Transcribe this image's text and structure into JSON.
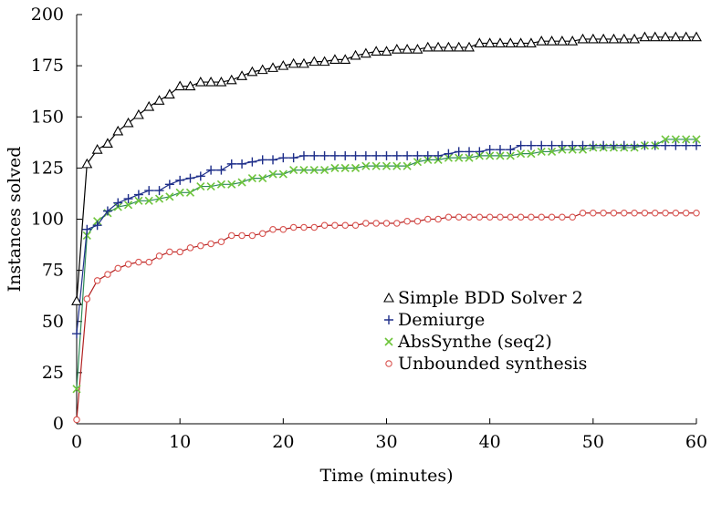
{
  "chart_data": {
    "type": "line",
    "title": "",
    "xlabel": "Time (minutes)",
    "ylabel": "Instances solved",
    "xlim": [
      0,
      60
    ],
    "ylim": [
      0,
      200
    ],
    "x_ticks": [
      0,
      10,
      20,
      30,
      40,
      50,
      60
    ],
    "y_ticks": [
      0,
      25,
      50,
      75,
      100,
      125,
      150,
      175,
      200
    ],
    "grid": false,
    "legend_position": "center-right",
    "series": [
      {
        "name": "Simple BDD Solver 2",
        "color": "#000000",
        "marker": "triangle",
        "x": [
          0,
          1,
          2,
          3,
          4,
          5,
          6,
          7,
          8,
          9,
          10,
          11,
          12,
          13,
          14,
          15,
          16,
          17,
          18,
          19,
          20,
          21,
          22,
          23,
          24,
          25,
          26,
          27,
          28,
          29,
          30,
          31,
          32,
          33,
          34,
          35,
          36,
          37,
          38,
          39,
          40,
          41,
          42,
          43,
          44,
          45,
          46,
          47,
          48,
          49,
          50,
          51,
          52,
          53,
          54,
          55,
          56,
          57,
          58,
          59,
          60
        ],
        "y": [
          60,
          127,
          134,
          137,
          143,
          147,
          151,
          155,
          158,
          161,
          165,
          165,
          167,
          167,
          167,
          168,
          170,
          172,
          173,
          174,
          175,
          176,
          176,
          177,
          177,
          178,
          178,
          180,
          181,
          182,
          182,
          183,
          183,
          183,
          184,
          184,
          184,
          184,
          184,
          186,
          186,
          186,
          186,
          186,
          186,
          187,
          187,
          187,
          187,
          188,
          188,
          188,
          188,
          188,
          188,
          189,
          189,
          189,
          189,
          189,
          189
        ]
      },
      {
        "name": "Demiurge",
        "color": "#1f2f8a",
        "marker": "plus",
        "x": [
          0,
          1,
          2,
          3,
          4,
          5,
          6,
          7,
          8,
          9,
          10,
          11,
          12,
          13,
          14,
          15,
          16,
          17,
          18,
          19,
          20,
          21,
          22,
          23,
          24,
          25,
          26,
          27,
          28,
          29,
          30,
          31,
          32,
          33,
          34,
          35,
          36,
          37,
          38,
          39,
          40,
          41,
          42,
          43,
          44,
          45,
          46,
          47,
          48,
          49,
          50,
          51,
          52,
          53,
          54,
          55,
          56,
          57,
          58,
          59,
          60
        ],
        "y": [
          44,
          95,
          97,
          104,
          108,
          110,
          112,
          114,
          114,
          117,
          119,
          120,
          121,
          124,
          124,
          127,
          127,
          128,
          129,
          129,
          130,
          130,
          131,
          131,
          131,
          131,
          131,
          131,
          131,
          131,
          131,
          131,
          131,
          131,
          131,
          131,
          132,
          133,
          133,
          133,
          134,
          134,
          134,
          136,
          136,
          136,
          136,
          136,
          136,
          136,
          136,
          136,
          136,
          136,
          136,
          136,
          136,
          136,
          136,
          136,
          136
        ]
      },
      {
        "name": "AbsSynthe (seq2)",
        "color": "#2e8b57",
        "marker_color": "#6dc43a",
        "marker": "x",
        "x": [
          0,
          1,
          2,
          3,
          4,
          5,
          6,
          7,
          8,
          9,
          10,
          11,
          12,
          13,
          14,
          15,
          16,
          17,
          18,
          19,
          20,
          21,
          22,
          23,
          24,
          25,
          26,
          27,
          28,
          29,
          30,
          31,
          32,
          33,
          34,
          35,
          36,
          37,
          38,
          39,
          40,
          41,
          42,
          43,
          44,
          45,
          46,
          47,
          48,
          49,
          50,
          51,
          52,
          53,
          54,
          55,
          56,
          57,
          58,
          59,
          60
        ],
        "y": [
          17,
          92,
          99,
          103,
          106,
          107,
          109,
          109,
          110,
          111,
          113,
          113,
          116,
          116,
          117,
          117,
          118,
          120,
          120,
          122,
          122,
          124,
          124,
          124,
          124,
          125,
          125,
          125,
          126,
          126,
          126,
          126,
          126,
          128,
          129,
          129,
          130,
          130,
          130,
          131,
          131,
          131,
          131,
          132,
          132,
          133,
          133,
          134,
          134,
          134,
          135,
          135,
          135,
          135,
          135,
          136,
          136,
          139,
          139,
          139,
          139
        ]
      },
      {
        "name": "Unbounded synthesis",
        "color": "#b22222",
        "marker_color": "#d9534f",
        "marker": "circle",
        "x": [
          0,
          1,
          2,
          3,
          4,
          5,
          6,
          7,
          8,
          9,
          10,
          11,
          12,
          13,
          14,
          15,
          16,
          17,
          18,
          19,
          20,
          21,
          22,
          23,
          24,
          25,
          26,
          27,
          28,
          29,
          30,
          31,
          32,
          33,
          34,
          35,
          36,
          37,
          38,
          39,
          40,
          41,
          42,
          43,
          44,
          45,
          46,
          47,
          48,
          49,
          50,
          51,
          52,
          53,
          54,
          55,
          56,
          57,
          58,
          59,
          60
        ],
        "y": [
          2,
          61,
          70,
          73,
          76,
          78,
          79,
          79,
          82,
          84,
          84,
          86,
          87,
          88,
          89,
          92,
          92,
          92,
          93,
          95,
          95,
          96,
          96,
          96,
          97,
          97,
          97,
          97,
          98,
          98,
          98,
          98,
          99,
          99,
          100,
          100,
          101,
          101,
          101,
          101,
          101,
          101,
          101,
          101,
          101,
          101,
          101,
          101,
          101,
          103,
          103,
          103,
          103,
          103,
          103,
          103,
          103,
          103,
          103,
          103,
          103
        ]
      }
    ]
  }
}
